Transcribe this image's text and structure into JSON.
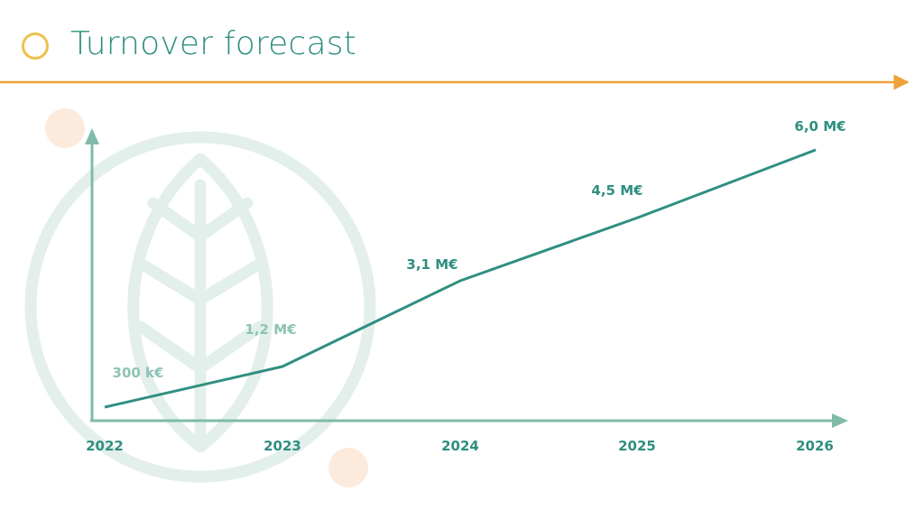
{
  "title": "Turnover forecast",
  "colors": {
    "accent_orange": "#eda23a",
    "title_circle": "#eec24a",
    "teal_dark": "#2f8f80",
    "teal_light": "#8cc3b4",
    "axis": "#7fbba8",
    "watermark": "#e3efeb",
    "dot": "#fcebdc"
  },
  "chart_data": {
    "type": "line",
    "categories": [
      "2022",
      "2023",
      "2024",
      "2025",
      "2026"
    ],
    "values": [
      0.3,
      1.2,
      3.1,
      4.5,
      6.0
    ],
    "data_labels": [
      "300 k€",
      "1,2 M€",
      "3,1 M€",
      "4,5 M€",
      "6,0 M€"
    ],
    "title": "Turnover forecast",
    "xlabel": "",
    "ylabel": "",
    "ylim": [
      0,
      6.6
    ],
    "grid": false,
    "legend": "none"
  }
}
